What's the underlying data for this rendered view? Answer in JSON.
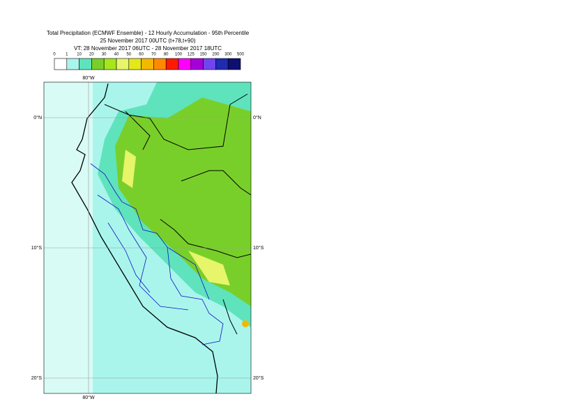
{
  "title": [
    "Total Precipitation (ECMWF Ensemble) - 12 Hourly Accumulation - 95th Percentile",
    "25 November 2017 00UTC (t+78,t+90)",
    "VT: 28 November 2017 06UTC - 28 November 2017 18UTC"
  ],
  "legend": {
    "levels": [
      0,
      1,
      10,
      20,
      30,
      40,
      50,
      60,
      70,
      80,
      100,
      125,
      150,
      200,
      300,
      500
    ],
    "colors": [
      "#ffffff",
      "#a9f5ec",
      "#5fe3bc",
      "#79cf2a",
      "#a6e61c",
      "#e6f56a",
      "#e3e81a",
      "#f5b800",
      "#ff8a00",
      "#ff1a00",
      "#ff00ff",
      "#a600d9",
      "#7045f0",
      "#1f2bb0",
      "#0d1070"
    ]
  },
  "map": {
    "lon_labels": [
      "80°W",
      "80°W"
    ],
    "lat_labels_left": [
      "0°N",
      "10°S",
      "20°S"
    ],
    "lat_labels_right": [
      "0°N",
      "10°S",
      "20°S"
    ]
  }
}
